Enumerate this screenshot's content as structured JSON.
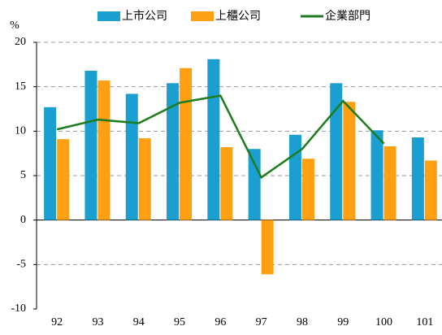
{
  "chart_data": {
    "type": "bar_line",
    "y_label": "%",
    "categories": [
      "92",
      "93",
      "94",
      "95",
      "96",
      "97",
      "98",
      "99",
      "100",
      "101"
    ],
    "series": [
      {
        "name": "上市公司",
        "type": "bar",
        "color": "#1b9fd0",
        "values": [
          12.7,
          16.8,
          14.2,
          15.4,
          18.1,
          8.0,
          9.6,
          15.4,
          10.1,
          9.3
        ]
      },
      {
        "name": "上櫃公司",
        "type": "bar",
        "color": "#ffa012",
        "values": [
          9.1,
          15.7,
          9.2,
          17.1,
          8.2,
          -6.1,
          6.9,
          13.3,
          8.3,
          6.7
        ]
      },
      {
        "name": "企業部門",
        "type": "line",
        "color": "#1e7b1e",
        "values": [
          10.2,
          11.3,
          10.9,
          13.2,
          14.0,
          4.8,
          8.0,
          13.4,
          8.6,
          null
        ]
      }
    ],
    "ylim": [
      -10,
      20
    ],
    "yticks": [
      -10,
      -5,
      0,
      5,
      10,
      15,
      20
    ],
    "grid": true,
    "legend": "top"
  }
}
